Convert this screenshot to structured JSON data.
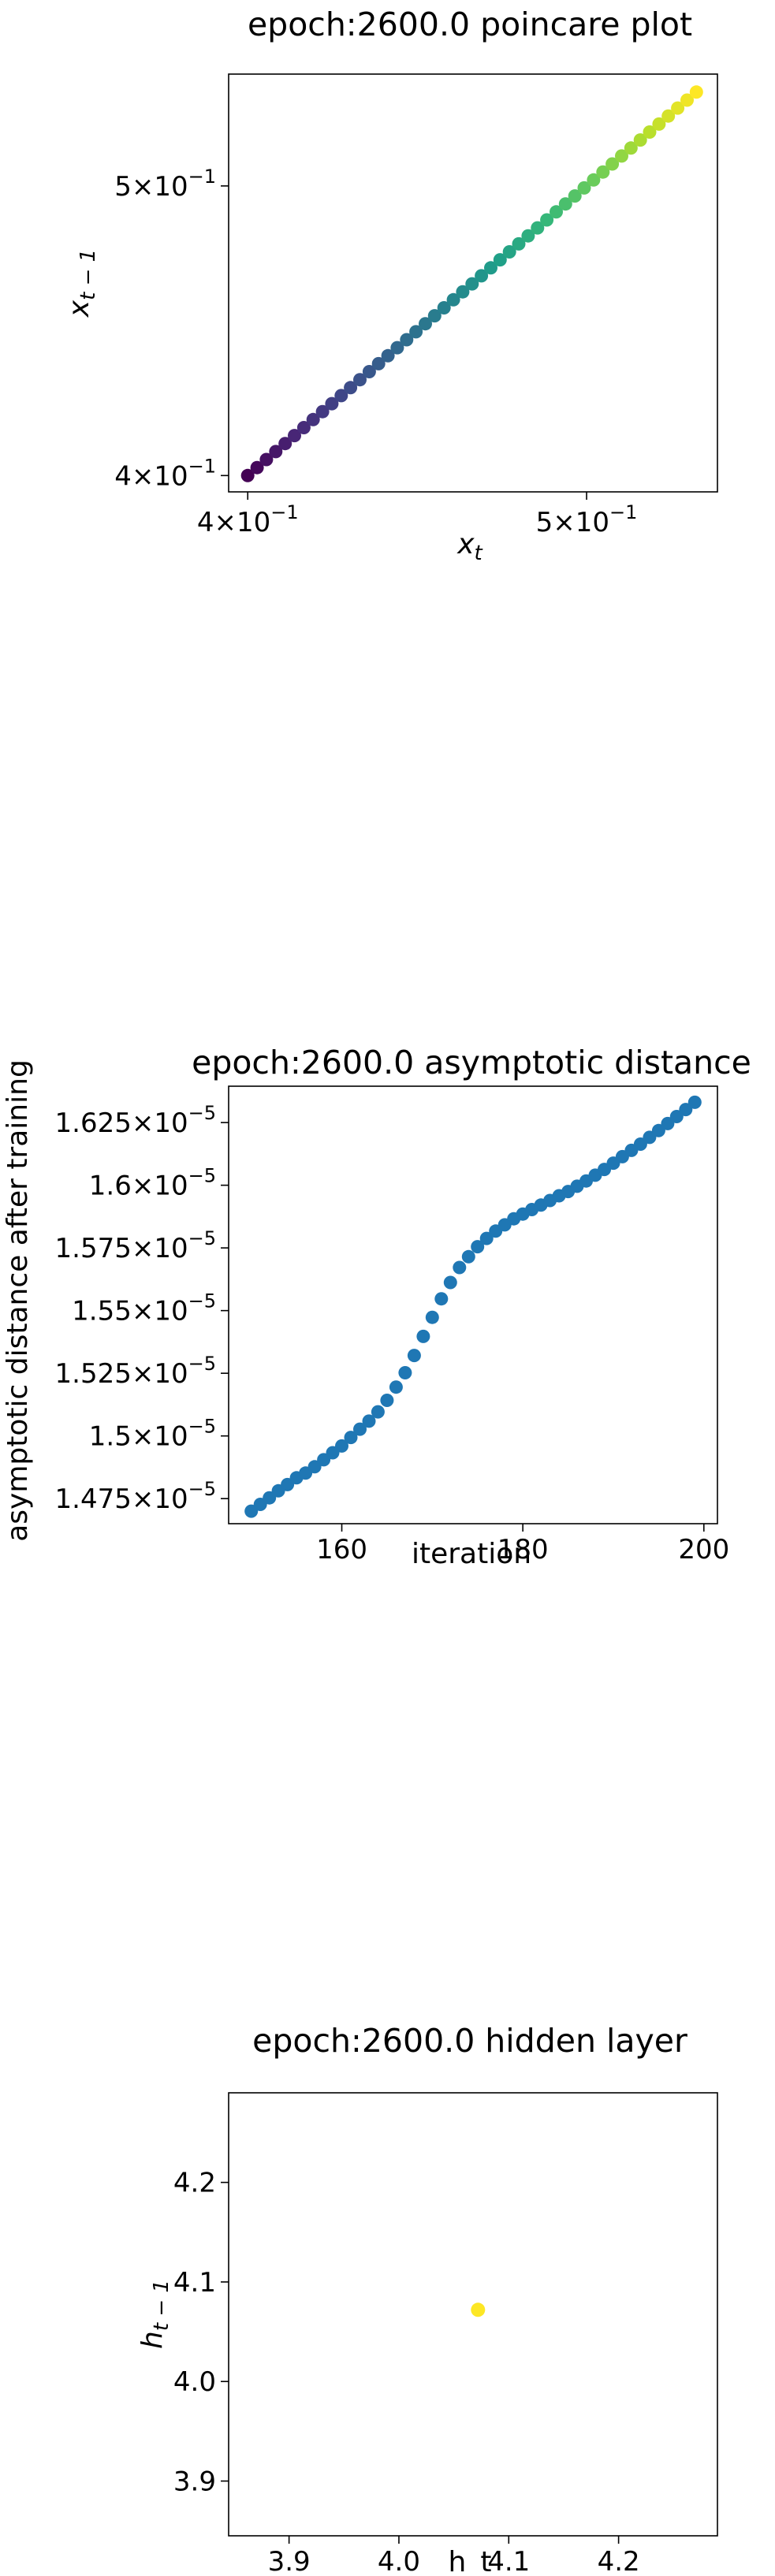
{
  "chart_data": [
    {
      "type": "scatter",
      "title": "epoch:2600.0 poincare plot",
      "xlabel": "x_t",
      "ylabel": "x_{t-1}",
      "scale": "log",
      "colormap": "viridis",
      "xlim": [
        0.395,
        0.545
      ],
      "ylim": [
        0.395,
        0.545
      ],
      "xticks": [
        {
          "value": 0.4,
          "mant": "4",
          "exp": "−1"
        },
        {
          "value": 0.5,
          "mant": "5",
          "exp": "−1"
        }
      ],
      "yticks": [
        {
          "value": 0.4,
          "mant": "4",
          "exp": "−1"
        },
        {
          "value": 0.5,
          "mant": "5",
          "exp": "−1"
        }
      ],
      "x_start": 0.4,
      "x_end": 0.5375,
      "num_points": 49,
      "grid": false
    },
    {
      "type": "scatter",
      "title": "epoch:2600.0 asymptotic distance",
      "xlabel": "iteration",
      "ylabel": "asymptotic distance after training",
      "color": "#1f77b4",
      "xlim": [
        147.5,
        201.5
      ],
      "ylim": [
        1.465,
        1.6395
      ],
      "yexp": "−5",
      "xticks": [
        {
          "value": 160,
          "label": "160"
        },
        {
          "value": 180,
          "label": "180"
        },
        {
          "value": 200,
          "label": "200"
        }
      ],
      "yticks": [
        {
          "value": 1.475,
          "label": "1.475"
        },
        {
          "value": 1.5,
          "label": "1.5"
        },
        {
          "value": 1.525,
          "label": "1.525"
        },
        {
          "value": 1.55,
          "label": "1.55"
        },
        {
          "value": 1.575,
          "label": "1.575"
        },
        {
          "value": 1.6,
          "label": "1.6"
        },
        {
          "value": 1.625,
          "label": "1.625"
        }
      ],
      "x": [
        150,
        151,
        152,
        153,
        154,
        155,
        156,
        157,
        158,
        159,
        160,
        161,
        162,
        163,
        164,
        165,
        166,
        167,
        168,
        169,
        170,
        171,
        172,
        173,
        174,
        175,
        176,
        177,
        178,
        179,
        180,
        181,
        182,
        183,
        184,
        185,
        186,
        187,
        188,
        189,
        190,
        191,
        192,
        193,
        194,
        195,
        196,
        197,
        198,
        199
      ],
      "y": [
        1.47,
        1.4727,
        1.4753,
        1.4781,
        1.4806,
        1.4833,
        1.4852,
        1.4877,
        1.4905,
        1.4933,
        1.496,
        1.4994,
        1.5027,
        1.5059,
        1.5096,
        1.5142,
        1.5195,
        1.5252,
        1.5321,
        1.5397,
        1.5473,
        1.5547,
        1.5612,
        1.5672,
        1.5715,
        1.5755,
        1.5788,
        1.5817,
        1.5842,
        1.5866,
        1.5885,
        1.5903,
        1.5921,
        1.5939,
        1.5958,
        1.5975,
        1.5996,
        1.6017,
        1.604,
        1.6063,
        1.6088,
        1.6114,
        1.6139,
        1.6164,
        1.6191,
        1.6218,
        1.6246,
        1.6274,
        1.6302,
        1.6331
      ],
      "grid": false
    },
    {
      "type": "scatter",
      "title": "epoch:2600.0 hidden layer",
      "xlabel": "h_t",
      "ylabel": "h_{t-1}",
      "color": "#fde725",
      "xlim": [
        3.845,
        4.29
      ],
      "ylim": [
        3.845,
        4.29
      ],
      "xticks": [
        {
          "value": 3.9,
          "label": "3.9"
        },
        {
          "value": 4.0,
          "label": "4.0"
        },
        {
          "value": 4.1,
          "label": "4.1"
        },
        {
          "value": 4.2,
          "label": "4.2"
        }
      ],
      "yticks": [
        {
          "value": 3.9,
          "label": "3.9"
        },
        {
          "value": 4.0,
          "label": "4.0"
        },
        {
          "value": 4.1,
          "label": "4.1"
        },
        {
          "value": 4.2,
          "label": "4.2"
        }
      ],
      "x": [
        4.072
      ],
      "y": [
        4.072
      ],
      "grid": false
    }
  ]
}
